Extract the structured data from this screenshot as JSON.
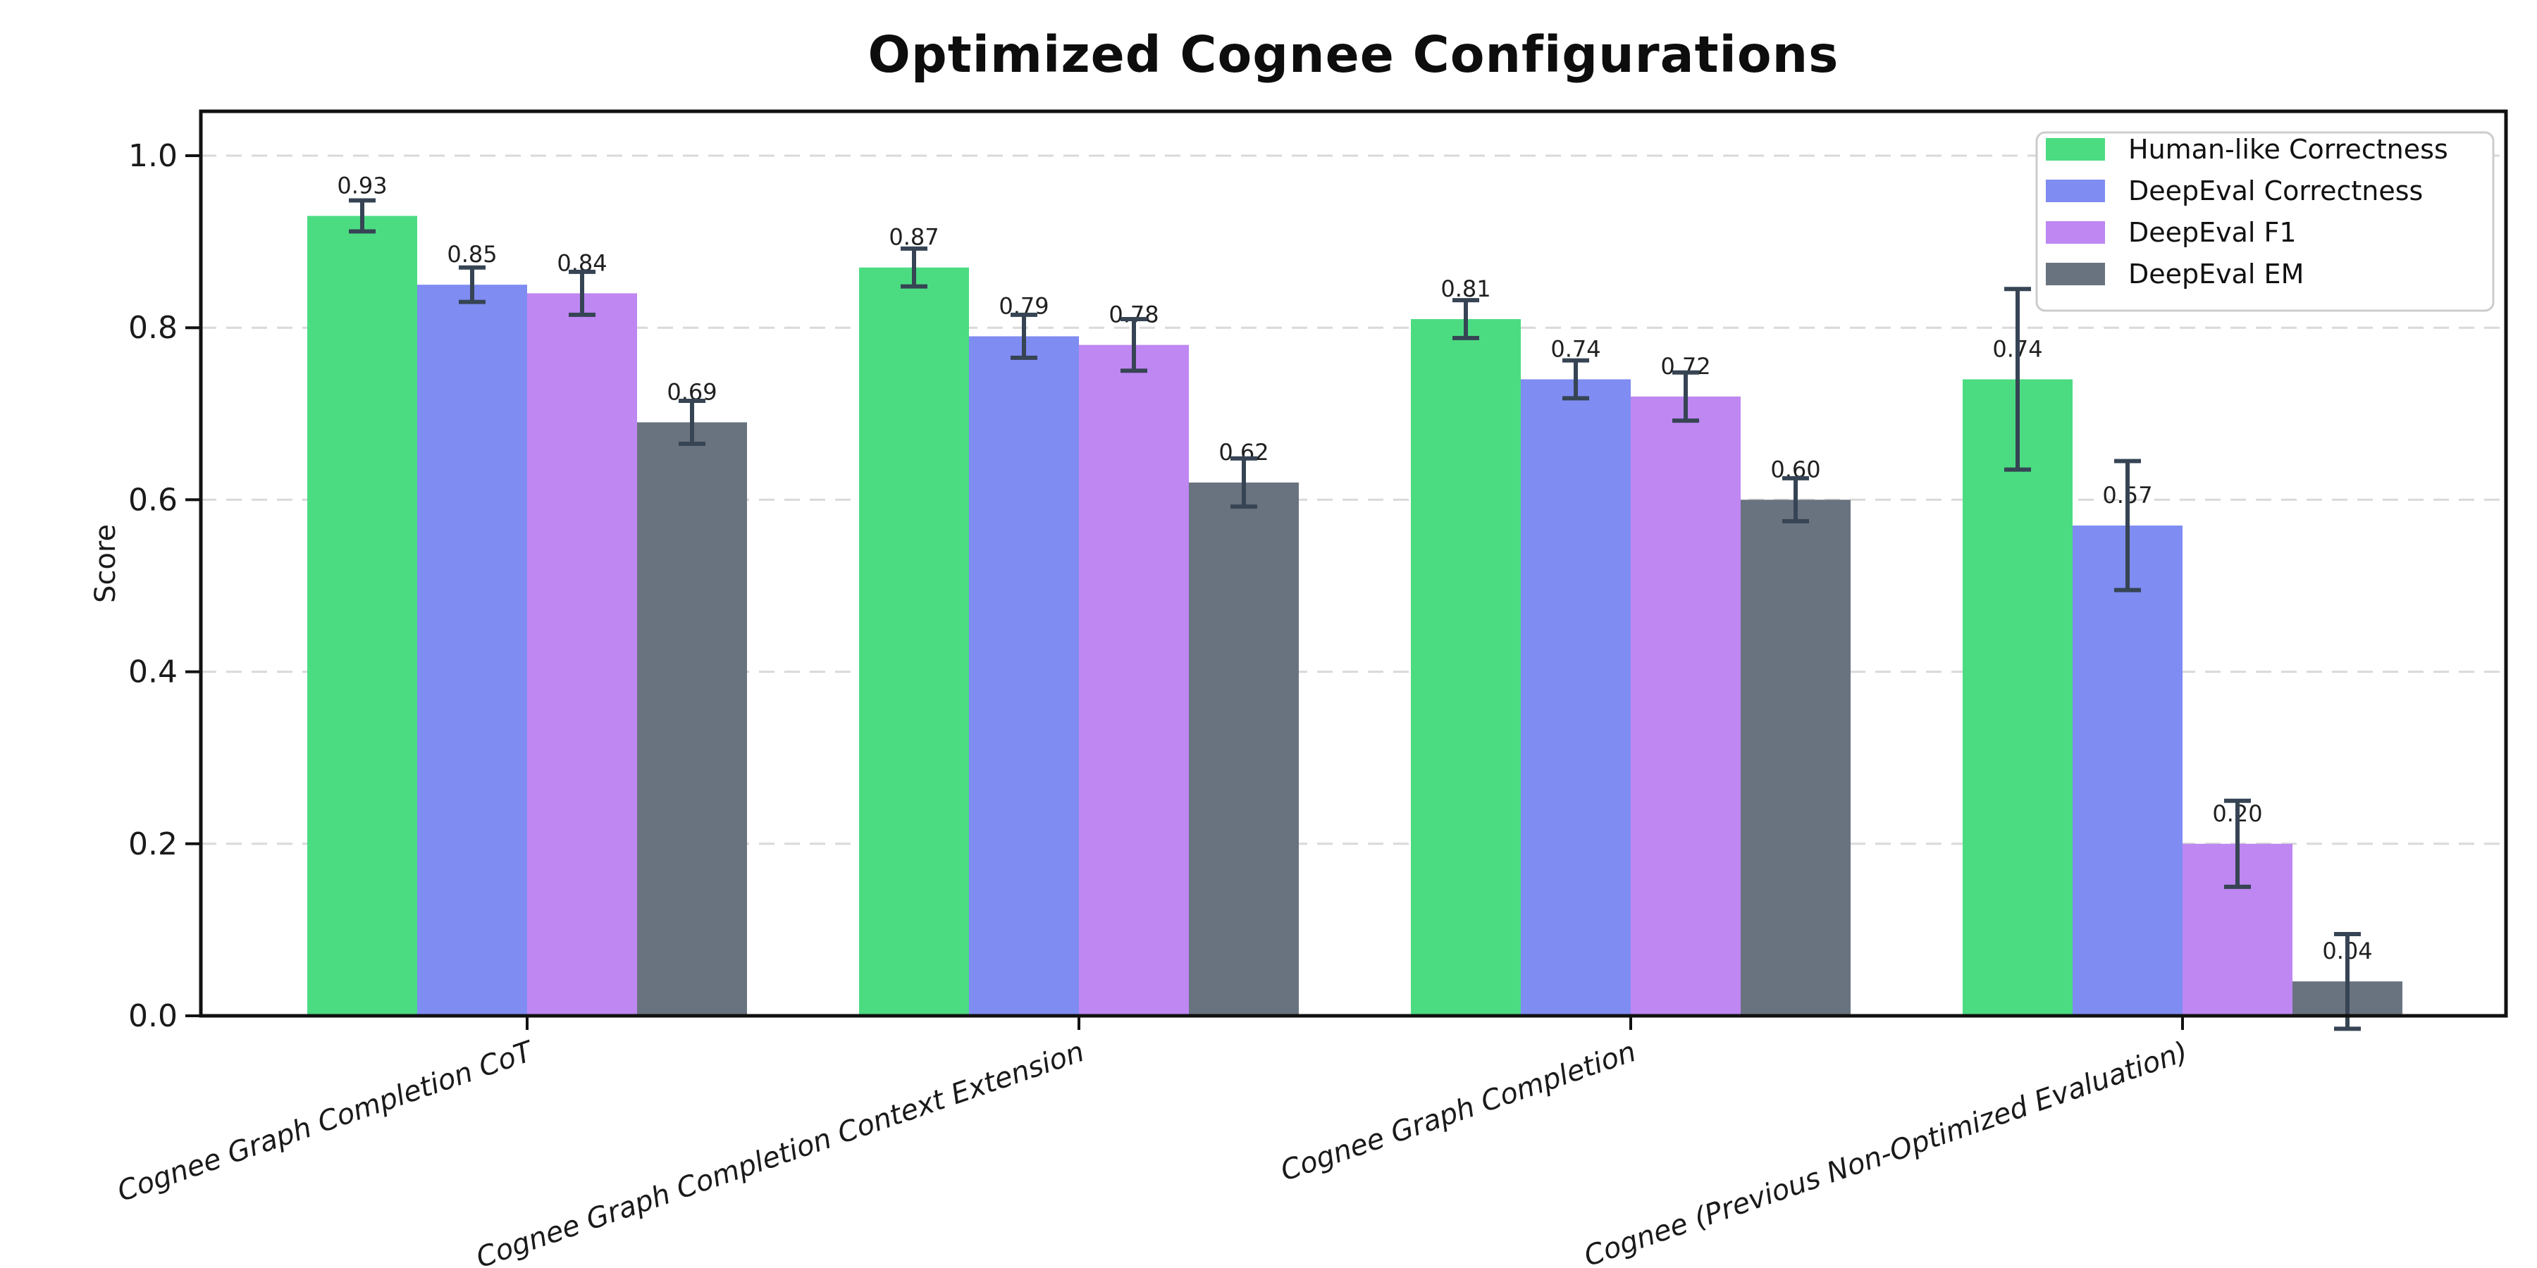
{
  "chart_data": {
    "type": "bar",
    "title": "Optimized Cognee Configurations",
    "ylabel": "Score",
    "xlabel": "",
    "ylim": [
      0.0,
      1.0
    ],
    "yticks": [
      "0.0",
      "0.2",
      "0.4",
      "0.6",
      "0.8",
      "1.0"
    ],
    "grid": "horizontal dashed at each y tick",
    "legend_position": "upper right",
    "categories": [
      "Cognee Graph Completion CoT",
      "Cognee Graph Completion Context Extension",
      "Cognee Graph Completion",
      "Cognee (Previous Non-Optimized Evaluation)"
    ],
    "series": [
      {
        "name": "Human-like Correctness",
        "color": "#4bdc82",
        "values": [
          0.93,
          0.87,
          0.81,
          0.74
        ],
        "errors": [
          0.018,
          0.022,
          0.022,
          0.105
        ]
      },
      {
        "name": "DeepEval Correctness",
        "color": "#7f8cf2",
        "values": [
          0.85,
          0.79,
          0.74,
          0.57
        ],
        "errors": [
          0.02,
          0.025,
          0.022,
          0.075
        ]
      },
      {
        "name": "DeepEval F1",
        "color": "#be87f2",
        "values": [
          0.84,
          0.78,
          0.72,
          0.2
        ],
        "errors": [
          0.025,
          0.03,
          0.028,
          0.05
        ]
      },
      {
        "name": "DeepEval EM",
        "color": "#697380",
        "values": [
          0.69,
          0.62,
          0.6,
          0.04
        ],
        "errors": [
          0.025,
          0.028,
          0.025,
          0.055
        ]
      }
    ],
    "bar_value_labels": [
      [
        "0.93",
        "0.87",
        "0.81",
        "0.74"
      ],
      [
        "0.85",
        "0.79",
        "0.74",
        "0.57"
      ],
      [
        "0.84",
        "0.78",
        "0.72",
        "0.20"
      ],
      [
        "0.69",
        "0.62",
        "0.60",
        "0.04"
      ]
    ],
    "colors": {
      "error_bar": "#364454",
      "grid": "#d9d9d9",
      "axis": "#111111",
      "tick_label": "#1a1a1a",
      "value_label": "#1f1f1f",
      "legend_border": "#cccccc",
      "background": "#ffffff"
    }
  }
}
